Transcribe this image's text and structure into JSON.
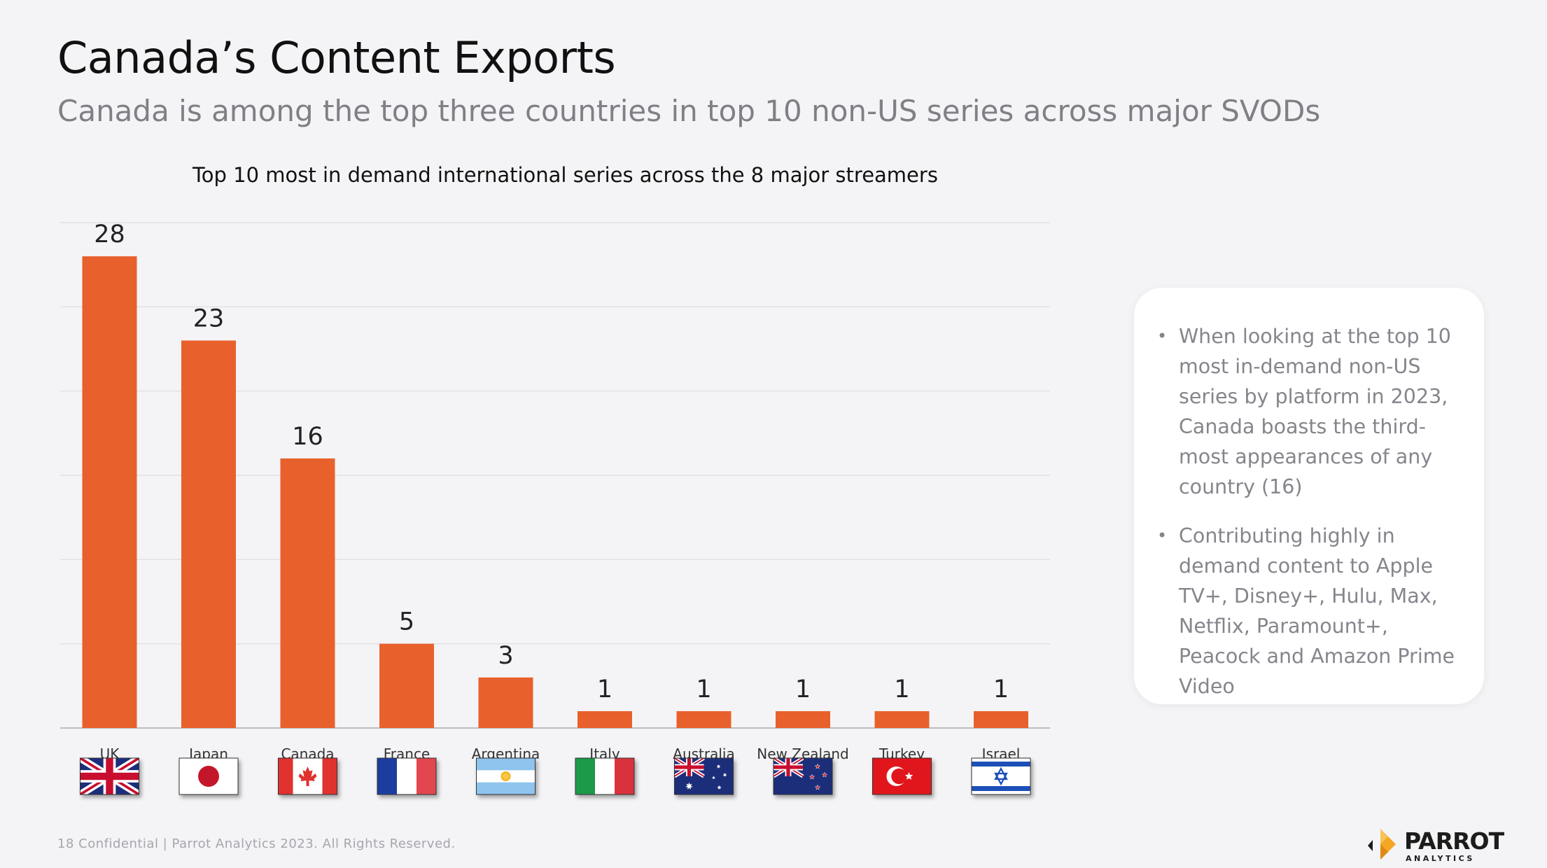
{
  "page": {
    "title": "Canada’s Content Exports",
    "subtitle": "Canada is among the top three countries in top 10 non-US series across major SVODs",
    "footer": "18  Confidential  |  Parrot Analytics 2023. All Rights Reserved.",
    "logo_word": "PARROT",
    "logo_sub": "ANALYTICS"
  },
  "colors": {
    "bar": "#e8612c",
    "grid": "#dcdcde",
    "axis": "#bdbdc0"
  },
  "chart_data": {
    "type": "bar",
    "title": "Top 10 most in demand international series across the 8 major streamers",
    "categories": [
      "UK",
      "Japan",
      "Canada",
      "France",
      "Argentina",
      "Italy",
      "Australia",
      "New Zealand",
      "Turkey",
      "Israel"
    ],
    "values": [
      28,
      23,
      16,
      5,
      3,
      1,
      1,
      1,
      1,
      1
    ],
    "xlabel": "",
    "ylabel": "",
    "ylim": [
      0,
      30
    ],
    "grid": true,
    "flags": [
      "uk-flag-icon",
      "japan-flag-icon",
      "canada-flag-icon",
      "france-flag-icon",
      "argentina-flag-icon",
      "italy-flag-icon",
      "australia-flag-icon",
      "new-zealand-flag-icon",
      "turkey-flag-icon",
      "israel-flag-icon"
    ]
  },
  "insights": [
    "When looking at the top 10 most in-demand non-US series by platform in 2023, Canada boasts the third-most appearances of any country (16)",
    "Contributing highly in demand content to Apple TV+, Disney+, Hulu, Max, Netflix, Paramount+, Peacock and Amazon Prime Video"
  ]
}
